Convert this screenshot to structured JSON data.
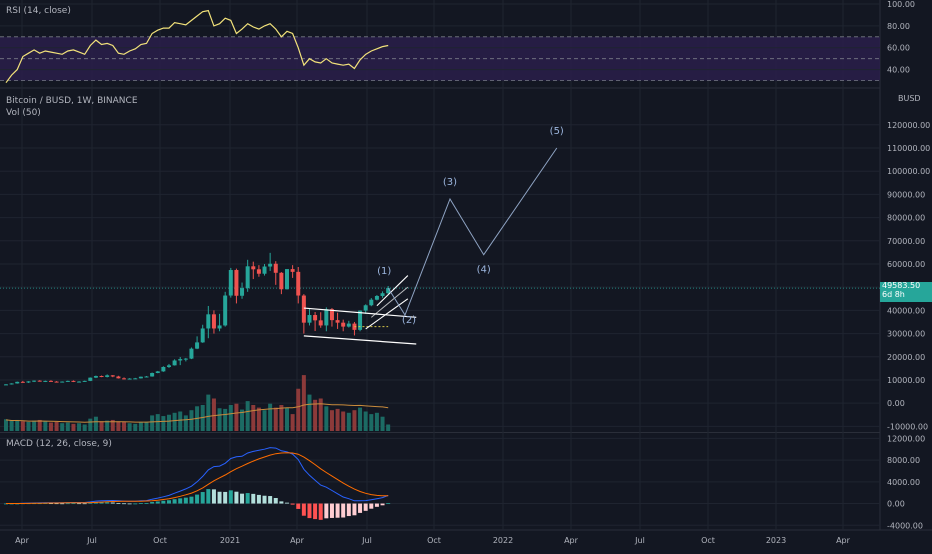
{
  "rsi_pane": {
    "label": "RSI (14, close)",
    "ticks": [
      "100.00",
      "80.00",
      "60.00",
      "40.00"
    ],
    "levels": {
      "upper": 70,
      "middle": 50,
      "lower": 30
    },
    "line_color": "#f2e27a",
    "band_color": "#2a1f4a"
  },
  "price_pane": {
    "label": "Bitcoin / BUSD, 1W, BINANCE",
    "currency_label": "BUSD",
    "ticks": [
      "120000.00",
      "110000.00",
      "100000.00",
      "90000.00",
      "80000.00",
      "70000.00",
      "60000.00",
      "50000.00",
      "40000.00",
      "30000.00",
      "20000.00",
      "10000.00",
      "0.00",
      "-10000.00"
    ],
    "last_price": "49583.50",
    "countdown": "6d 8h",
    "colors": {
      "up": "#26a69a",
      "down": "#ef5350",
      "projection": "#8fa4c4",
      "label": "#9cb6de",
      "channel": "#ffffff"
    }
  },
  "volume_pane": {
    "label": "Vol (50)"
  },
  "macd_pane": {
    "label": "MACD (12, 26, close, 9)",
    "ticks": [
      "12000.00",
      "8000.00",
      "4000.00",
      "0.00",
      "-4000.00"
    ],
    "macd_color": "#2962ff",
    "signal_color": "#ff6d00"
  },
  "time_axis": {
    "labels": [
      "Apr",
      "Jul",
      "Oct",
      "2021",
      "Apr",
      "Jul",
      "Oct",
      "2022",
      "Apr",
      "Jul",
      "Oct",
      "2023",
      "Apr"
    ]
  },
  "chart_data": {
    "type": "candlestick",
    "wave_labels": [
      "(1)",
      "(2)",
      "(3)",
      "(4)",
      "(5)"
    ],
    "candles": [
      [
        8000,
        8200,
        7900,
        8100
      ],
      [
        8100,
        8600,
        8000,
        8500
      ],
      [
        8500,
        9300,
        8400,
        9200
      ],
      [
        9200,
        9600,
        8800,
        8900
      ],
      [
        8900,
        9500,
        8700,
        9400
      ],
      [
        9400,
        9800,
        9100,
        9700
      ],
      [
        9700,
        9900,
        9300,
        9400
      ],
      [
        9400,
        9700,
        9100,
        9600
      ],
      [
        9600,
        9900,
        9300,
        9300
      ],
      [
        9300,
        9500,
        9000,
        9100
      ],
      [
        9100,
        9400,
        8900,
        9300
      ],
      [
        9300,
        9700,
        9200,
        9600
      ],
      [
        9600,
        9800,
        9100,
        9200
      ],
      [
        9200,
        9500,
        9000,
        9300
      ],
      [
        9300,
        9700,
        9200,
        9600
      ],
      [
        9600,
        11100,
        9500,
        11000
      ],
      [
        11000,
        11900,
        10800,
        11700
      ],
      [
        11700,
        11900,
        11200,
        11300
      ],
      [
        11300,
        12400,
        11100,
        12000
      ],
      [
        12000,
        12100,
        11200,
        11500
      ],
      [
        11500,
        11800,
        10600,
        10700
      ],
      [
        10700,
        11100,
        10200,
        10400
      ],
      [
        10400,
        10800,
        10200,
        10600
      ],
      [
        10600,
        10900,
        10500,
        10700
      ],
      [
        10700,
        11500,
        10600,
        11400
      ],
      [
        11400,
        11700,
        11300,
        11500
      ],
      [
        11500,
        13200,
        11400,
        13000
      ],
      [
        13000,
        13900,
        12900,
        13700
      ],
      [
        13700,
        15900,
        13500,
        15600
      ],
      [
        15600,
        16900,
        15200,
        16300
      ],
      [
        16300,
        18900,
        16200,
        18400
      ],
      [
        18400,
        19900,
        16400,
        19000
      ],
      [
        19000,
        19500,
        18000,
        19200
      ],
      [
        19200,
        24000,
        19000,
        23500
      ],
      [
        23500,
        28800,
        23300,
        26200
      ],
      [
        26200,
        33800,
        26000,
        32200
      ],
      [
        32200,
        41900,
        28000,
        38300
      ],
      [
        38300,
        40000,
        30000,
        32200
      ],
      [
        32200,
        38500,
        31000,
        33500
      ],
      [
        33500,
        48000,
        33000,
        46400
      ],
      [
        46400,
        58300,
        45500,
        57400
      ],
      [
        57400,
        58000,
        43000,
        46300
      ],
      [
        46300,
        52000,
        45000,
        49600
      ],
      [
        49600,
        61800,
        48000,
        59000
      ],
      [
        59000,
        61000,
        53500,
        57700
      ],
      [
        57700,
        59500,
        54500,
        55800
      ],
      [
        55800,
        60000,
        55000,
        58900
      ],
      [
        58900,
        64800,
        57000,
        60100
      ],
      [
        60100,
        61200,
        51000,
        56200
      ],
      [
        56200,
        56500,
        47000,
        49100
      ],
      [
        49100,
        57800,
        49000,
        57800
      ],
      [
        57800,
        59500,
        54000,
        56600
      ],
      [
        56600,
        58700,
        43000,
        46400
      ],
      [
        46400,
        47000,
        30000,
        34700
      ],
      [
        34700,
        40800,
        33500,
        38000
      ],
      [
        38000,
        39300,
        31100,
        35700
      ],
      [
        35700,
        39200,
        32500,
        33500
      ],
      [
        33500,
        41300,
        31000,
        40500
      ],
      [
        40500,
        41000,
        33000,
        35800
      ],
      [
        35800,
        39000,
        32000,
        34700
      ],
      [
        34700,
        36000,
        31000,
        33000
      ],
      [
        33000,
        35500,
        32600,
        34300
      ],
      [
        34300,
        35000,
        29200,
        31600
      ],
      [
        31600,
        40000,
        31000,
        39900
      ],
      [
        39900,
        42600,
        38500,
        42200
      ],
      [
        42200,
        45300,
        41800,
        44600
      ],
      [
        44600,
        46600,
        44300,
        46200
      ],
      [
        46200,
        48200,
        45400,
        47400
      ],
      [
        47400,
        50500,
        47100,
        49600
      ]
    ],
    "volumes": [
      1.8,
      1.6,
      1.7,
      1.5,
      1.4,
      1.6,
      1.7,
      1.5,
      1.3,
      1.4,
      1.2,
      1.3,
      1.1,
      1.2,
      1.0,
      1.9,
      2.2,
      1.5,
      1.6,
      1.7,
      1.5,
      1.4,
      1.2,
      1.1,
      1.3,
      1.4,
      2.4,
      2.6,
      2.3,
      2.5,
      2.8,
      3.0,
      2.4,
      3.2,
      3.8,
      4.0,
      5.6,
      5.0,
      3.5,
      3.4,
      4.0,
      4.2,
      3.3,
      4.6,
      4.0,
      3.6,
      3.2,
      4.2,
      3.6,
      4.0,
      3.6,
      2.6,
      6.5,
      8.6,
      5.6,
      4.8,
      5.0,
      3.8,
      3.2,
      3.4,
      3.0,
      2.8,
      3.2,
      3.6,
      3.0,
      2.6,
      2.8,
      2.2,
      1.0
    ],
    "rsi": [
      28,
      35,
      40,
      52,
      55,
      58,
      55,
      57,
      56,
      55,
      54,
      57,
      58,
      56,
      54,
      62,
      67,
      63,
      64,
      62,
      55,
      54,
      57,
      59,
      63,
      64,
      73,
      76,
      78,
      78,
      83,
      82,
      81,
      85,
      89,
      93,
      94,
      80,
      82,
      87,
      85,
      73,
      77,
      82,
      79,
      77,
      80,
      82,
      77,
      70,
      75,
      73,
      60,
      44,
      50,
      47,
      46,
      50,
      46,
      45,
      44,
      45,
      41,
      49,
      54,
      57,
      59,
      61,
      62
    ],
    "macd": [
      0,
      0,
      0,
      50,
      80,
      100,
      120,
      150,
      160,
      160,
      150,
      180,
      200,
      200,
      200,
      300,
      450,
      500,
      550,
      560,
      500,
      450,
      420,
      420,
      500,
      550,
      800,
      1000,
      1250,
      1500,
      1900,
      2300,
      2700,
      3200,
      4000,
      5000,
      6200,
      6800,
      6900,
      7400,
      8300,
      8600,
      8700,
      9300,
      9600,
      9800,
      10000,
      10300,
      10200,
      9700,
      9500,
      9100,
      8100,
      6300,
      5200,
      4300,
      3400,
      3000,
      2400,
      1800,
      1200,
      900,
      500,
      500,
      550,
      700,
      900,
      1100,
      1500
    ],
    "signal": [
      0,
      0,
      0,
      10,
      30,
      45,
      65,
      80,
      100,
      110,
      120,
      130,
      140,
      150,
      160,
      180,
      220,
      270,
      320,
      370,
      400,
      410,
      410,
      410,
      430,
      460,
      520,
      620,
      740,
      890,
      1100,
      1340,
      1610,
      1930,
      2350,
      2880,
      3540,
      4190,
      4730,
      5260,
      5870,
      6420,
      6880,
      7370,
      7820,
      8210,
      8560,
      8920,
      9180,
      9300,
      9340,
      9300,
      9090,
      8540,
      7880,
      7160,
      6400,
      5720,
      5050,
      4410,
      3770,
      3200,
      2660,
      2220,
      1890,
      1650,
      1500,
      1420,
      1440
    ],
    "rsi_ylim": [
      25,
      100
    ],
    "price_ylim": [
      -12000,
      135000
    ],
    "macd_ylim": [
      -4500,
      12800
    ],
    "projection": [
      {
        "week": 68,
        "price": 49583
      },
      {
        "week": 71,
        "price": 38000
      },
      {
        "week": 79,
        "price": 88000
      },
      {
        "week": 85,
        "price": 64000
      },
      {
        "week": 98,
        "price": 110000
      }
    ]
  }
}
